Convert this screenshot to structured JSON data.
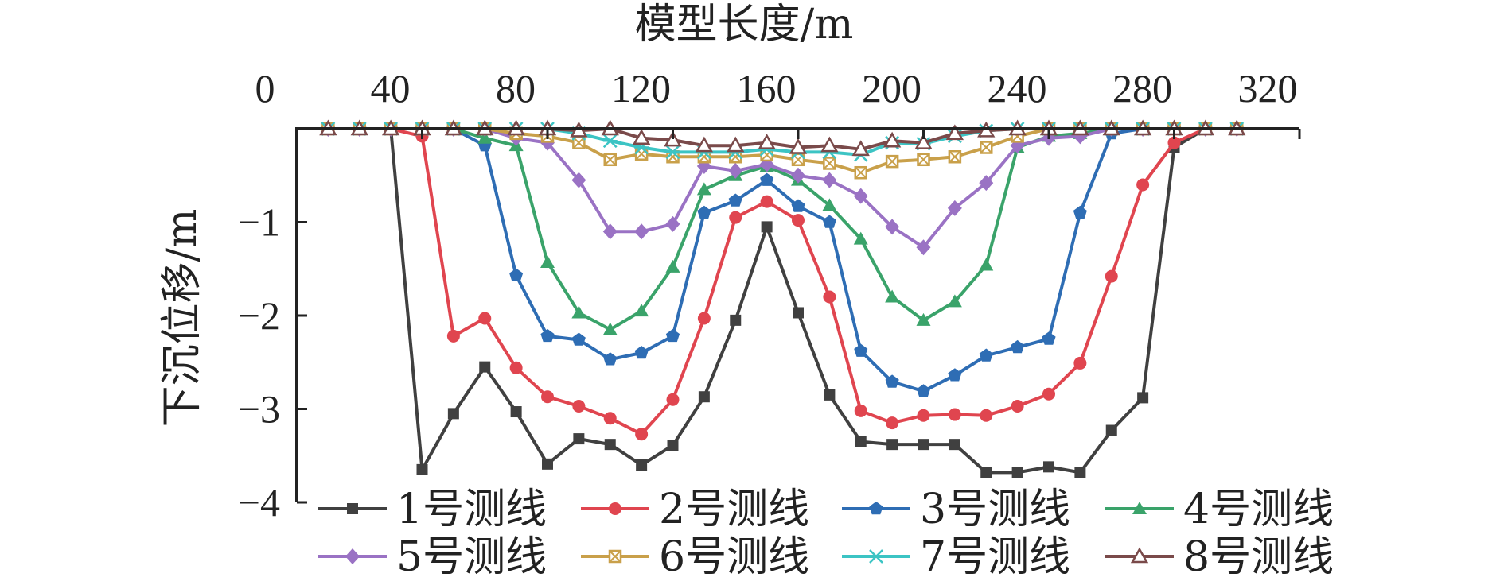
{
  "chart_data": {
    "type": "line",
    "title": "",
    "xlabel": "模型长度/m",
    "ylabel": "下沉位移/m",
    "xlim": [
      0,
      320
    ],
    "ylim": [
      -4,
      0
    ],
    "xticks": [
      "0",
      "40",
      "80",
      "120",
      "160",
      "200",
      "240",
      "280",
      "320"
    ],
    "yticks": [
      "−1",
      "−2",
      "−3",
      "−4"
    ],
    "x_axis_position": "top",
    "legend_position": "bottom",
    "x": [
      10,
      20,
      30,
      40,
      50,
      60,
      70,
      80,
      90,
      100,
      110,
      120,
      130,
      140,
      150,
      160,
      170,
      180,
      190,
      200,
      210,
      220,
      230,
      240,
      250,
      260,
      270,
      280,
      290,
      300
    ],
    "series": [
      {
        "name": "1号测线",
        "color": "#404040",
        "marker": "square",
        "values": [
          0,
          0,
          0,
          -3.65,
          -3.05,
          -2.55,
          -3.03,
          -3.59,
          -3.32,
          -3.38,
          -3.6,
          -3.39,
          -2.87,
          -2.05,
          -1.05,
          -1.97,
          -2.85,
          -3.35,
          -3.38,
          -3.38,
          -3.38,
          -3.68,
          -3.68,
          -3.62,
          -3.68,
          -3.23,
          -2.88,
          -0.2,
          0,
          0
        ]
      },
      {
        "name": "2号测线",
        "color": "#e0454f",
        "marker": "circle",
        "values": [
          0,
          0,
          0,
          -0.08,
          -2.22,
          -2.03,
          -2.56,
          -2.87,
          -2.97,
          -3.1,
          -3.27,
          -2.9,
          -2.03,
          -0.95,
          -0.78,
          -0.98,
          -1.8,
          -3.02,
          -3.15,
          -3.07,
          -3.06,
          -3.07,
          -2.97,
          -2.84,
          -2.51,
          -1.58,
          -0.6,
          -0.15,
          0,
          0
        ]
      },
      {
        "name": "3号测线",
        "color": "#2e6db4",
        "marker": "pentagon",
        "values": [
          0,
          0,
          0,
          0,
          0,
          -0.18,
          -1.57,
          -2.22,
          -2.26,
          -2.47,
          -2.4,
          -2.22,
          -0.9,
          -0.77,
          -0.55,
          -0.83,
          -1.0,
          -2.38,
          -2.71,
          -2.81,
          -2.64,
          -2.43,
          -2.34,
          -2.25,
          -0.9,
          -0.05,
          0,
          0,
          0,
          0
        ]
      },
      {
        "name": "4号测线",
        "color": "#3aa36a",
        "marker": "triangle",
        "values": [
          0,
          0,
          0,
          0,
          0,
          -0.1,
          -0.18,
          -1.43,
          -1.97,
          -2.15,
          -1.95,
          -1.48,
          -0.65,
          -0.5,
          -0.4,
          -0.55,
          -0.82,
          -1.18,
          -1.8,
          -2.05,
          -1.85,
          -1.46,
          -0.2,
          -0.08,
          -0.05,
          0,
          0,
          0,
          0,
          0
        ]
      },
      {
        "name": "5号测线",
        "color": "#9a72c4",
        "marker": "diamond",
        "values": [
          0,
          0,
          0,
          0,
          0,
          0,
          -0.1,
          -0.15,
          -0.55,
          -1.1,
          -1.1,
          -1.02,
          -0.4,
          -0.45,
          -0.38,
          -0.5,
          -0.55,
          -0.72,
          -1.05,
          -1.27,
          -0.85,
          -0.58,
          -0.18,
          -0.1,
          -0.08,
          0,
          0,
          0,
          0,
          0
        ]
      },
      {
        "name": "6号测线",
        "color": "#c9a04a",
        "marker": "boxx",
        "values": [
          0,
          0,
          0,
          0,
          0,
          0,
          -0.05,
          -0.08,
          -0.15,
          -0.33,
          -0.27,
          -0.3,
          -0.3,
          -0.3,
          -0.28,
          -0.33,
          -0.37,
          -0.47,
          -0.35,
          -0.33,
          -0.3,
          -0.2,
          -0.08,
          0,
          0,
          0,
          0,
          0,
          0,
          0
        ]
      },
      {
        "name": "7号测线",
        "color": "#3cc4c4",
        "marker": "asterisk",
        "values": [
          0,
          0,
          0,
          0,
          0,
          0,
          0,
          0,
          -0.05,
          -0.13,
          -0.2,
          -0.25,
          -0.25,
          -0.25,
          -0.22,
          -0.25,
          -0.25,
          -0.28,
          -0.15,
          -0.16,
          -0.08,
          -0.02,
          0,
          0,
          0,
          0,
          0,
          0,
          0,
          0
        ]
      },
      {
        "name": "8号测线",
        "color": "#7a4a4a",
        "marker": "triangle-open",
        "values": [
          0,
          0,
          0,
          0,
          0,
          0,
          0,
          0,
          -0.02,
          0,
          -0.1,
          -0.12,
          -0.18,
          -0.18,
          -0.15,
          -0.2,
          -0.18,
          -0.22,
          -0.13,
          -0.15,
          -0.05,
          -0.02,
          0,
          0,
          0,
          0,
          0,
          0,
          0,
          0
        ]
      }
    ]
  }
}
